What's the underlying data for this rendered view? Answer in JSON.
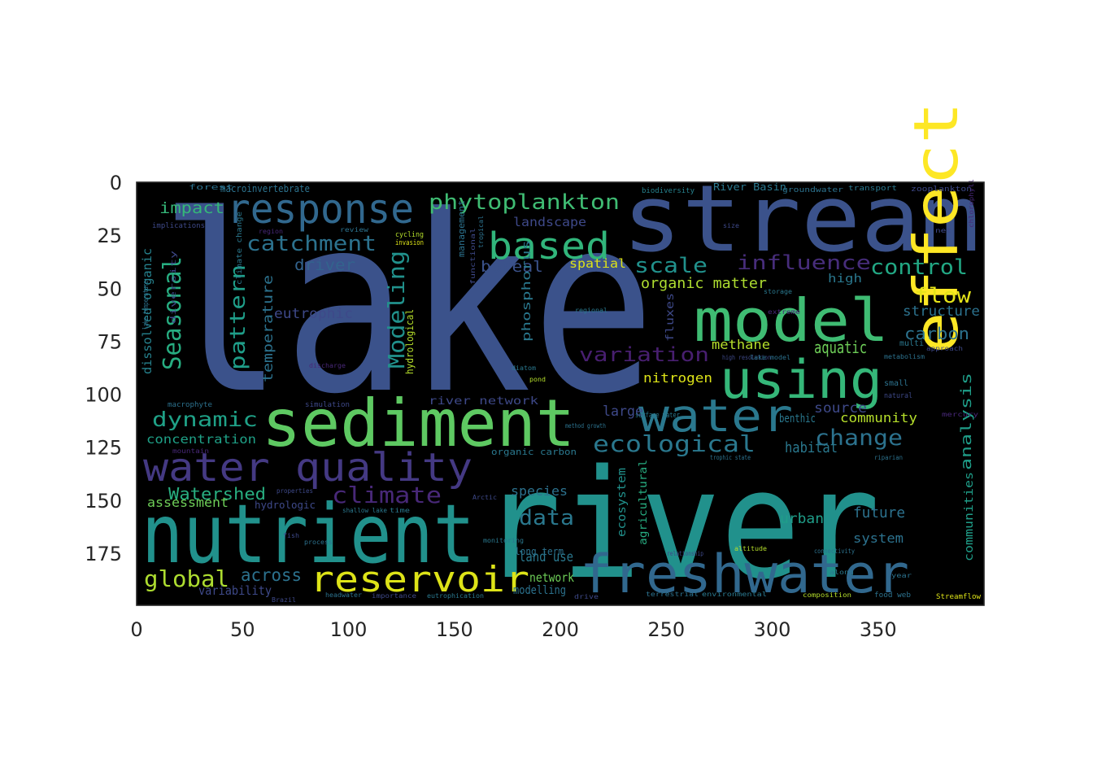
{
  "image_axes": {
    "x_ticks": [
      "0",
      "50",
      "100",
      "150",
      "200",
      "250",
      "300",
      "350"
    ],
    "y_ticks": [
      "0",
      "25",
      "50",
      "75",
      "100",
      "125",
      "150",
      "175"
    ],
    "background_color": "#000000",
    "palette": "viridis"
  },
  "wordcloud": {
    "words": [
      {
        "text": "lake",
        "color": "#3b528b"
      },
      {
        "text": "river",
        "color": "#21918c"
      },
      {
        "text": "stream",
        "color": "#3b528b"
      },
      {
        "text": "nutrient",
        "color": "#21918c"
      },
      {
        "text": "sediment",
        "color": "#5ec962"
      },
      {
        "text": "model",
        "color": "#3fbc73"
      },
      {
        "text": "effect",
        "color": "#fde725"
      },
      {
        "text": "freshwater",
        "color": "#31688e"
      },
      {
        "text": "water quality",
        "color": "#443983"
      },
      {
        "text": "using",
        "color": "#35b779"
      },
      {
        "text": "response",
        "color": "#31688e"
      },
      {
        "text": "water",
        "color": "#2a788e"
      },
      {
        "text": "reservoir",
        "color": "#dde318"
      },
      {
        "text": "based",
        "color": "#31b57b"
      },
      {
        "text": "ecological",
        "color": "#2a788e"
      },
      {
        "text": "phytoplankton",
        "color": "#3fbc73"
      },
      {
        "text": "Seasonal",
        "color": "#27ad81"
      },
      {
        "text": "Modeling",
        "color": "#21918c"
      },
      {
        "text": "pattern",
        "color": "#1f9e89"
      },
      {
        "text": "catchment",
        "color": "#2c728e"
      },
      {
        "text": "dynamic",
        "color": "#1fa187"
      },
      {
        "text": "global",
        "color": "#addc30"
      },
      {
        "text": "climate",
        "color": "#482878"
      },
      {
        "text": "change",
        "color": "#2c728e"
      },
      {
        "text": "influence",
        "color": "#472d7b"
      },
      {
        "text": "scale",
        "color": "#21918c"
      },
      {
        "text": "control",
        "color": "#22a884"
      },
      {
        "text": "flow",
        "color": "#e5e419"
      },
      {
        "text": "variation",
        "color": "#481f70"
      },
      {
        "text": "data",
        "color": "#2a788e"
      },
      {
        "text": "Watershed",
        "color": "#28ae80"
      },
      {
        "text": "across",
        "color": "#2c728e"
      },
      {
        "text": "impact",
        "color": "#35b779"
      },
      {
        "text": "driver",
        "color": "#33638d"
      },
      {
        "text": "boreal",
        "color": "#3b528b"
      },
      {
        "text": "temperature",
        "color": "#2c728e"
      },
      {
        "text": "organic matter",
        "color": "#addc30"
      },
      {
        "text": "eutrophic",
        "color": "#3e4989"
      },
      {
        "text": "carbon",
        "color": "#2c728e"
      },
      {
        "text": "aquatic",
        "color": "#6ece58"
      },
      {
        "text": "structure",
        "color": "#2c728e"
      },
      {
        "text": "methane",
        "color": "#b5de2b"
      },
      {
        "text": "nitrogen",
        "color": "#dde318"
      },
      {
        "text": "analysis",
        "color": "#1f9e89"
      },
      {
        "text": "source",
        "color": "#3e4989"
      },
      {
        "text": "community",
        "color": "#b5de2b"
      },
      {
        "text": "benthic",
        "color": "#2a788e"
      },
      {
        "text": "habitat",
        "color": "#2a788e"
      },
      {
        "text": "concentration",
        "color": "#1fa187"
      },
      {
        "text": "assessment",
        "color": "#6ece58"
      },
      {
        "text": "variability",
        "color": "#3e4989"
      },
      {
        "text": "land use",
        "color": "#2a788e"
      },
      {
        "text": "species",
        "color": "#2c728e"
      },
      {
        "text": "urban",
        "color": "#1f9e89"
      },
      {
        "text": "future",
        "color": "#2c728e"
      },
      {
        "text": "system",
        "color": "#2c728e"
      },
      {
        "text": "communities",
        "color": "#1f9e89"
      },
      {
        "text": "large",
        "color": "#3e4989"
      },
      {
        "text": "ecosystem",
        "color": "#21918c"
      },
      {
        "text": "agricultural",
        "color": "#27ad81"
      },
      {
        "text": "network",
        "color": "#6ece58"
      },
      {
        "text": "modelling",
        "color": "#2c728e"
      },
      {
        "text": "spatial",
        "color": "#dde318"
      },
      {
        "text": "landscape",
        "color": "#3e4989"
      },
      {
        "text": "phosphorus",
        "color": "#2a788e"
      },
      {
        "text": "hydrological",
        "color": "#b5de2b"
      },
      {
        "text": "management",
        "color": "#2c728e"
      },
      {
        "text": "fluxes",
        "color": "#3e4989"
      },
      {
        "text": "dissolved organic",
        "color": "#26828e"
      },
      {
        "text": "macroinvertebrate",
        "color": "#2c728e"
      },
      {
        "text": "river network",
        "color": "#3e4989"
      },
      {
        "text": "high",
        "color": "#2a788e"
      },
      {
        "text": "organic carbon",
        "color": "#2a788e"
      },
      {
        "text": "long term",
        "color": "#2c728e"
      },
      {
        "text": "hydrologic",
        "color": "#3e4989"
      },
      {
        "text": "River Basin",
        "color": "#2a788e"
      },
      {
        "text": "biodiversity",
        "color": "#26828e"
      },
      {
        "text": "groundwater",
        "color": "#2c728e"
      },
      {
        "text": "transport",
        "color": "#2a788e"
      },
      {
        "text": "zooplankton",
        "color": "#3e4989"
      },
      {
        "text": "forest",
        "color": "#2c728e"
      },
      {
        "text": "implications",
        "color": "#3e4989"
      },
      {
        "text": "cycling",
        "color": "#b5de2b"
      },
      {
        "text": "invasion",
        "color": "#dde318"
      },
      {
        "text": "diversity",
        "color": "#3e4989"
      },
      {
        "text": "climate change",
        "color": "#2a788e"
      },
      {
        "text": "lake temperature",
        "color": "#2c728e"
      },
      {
        "text": "macrophyte",
        "color": "#2c728e"
      },
      {
        "text": "simulation",
        "color": "#3e4989"
      },
      {
        "text": "surface water",
        "color": "#2a788e"
      },
      {
        "text": "small",
        "color": "#2c728e"
      },
      {
        "text": "natural",
        "color": "#3e4989"
      },
      {
        "text": "multi",
        "color": "#2a788e"
      },
      {
        "text": "approach",
        "color": "#3e4989"
      },
      {
        "text": "metabolism",
        "color": "#2c728e"
      },
      {
        "text": "high resolution",
        "color": "#3e4989"
      },
      {
        "text": "pond",
        "color": "#b5de2b"
      },
      {
        "text": "diatom",
        "color": "#2a788e"
      },
      {
        "text": "method growth",
        "color": "#2c728e"
      },
      {
        "text": "mountain",
        "color": "#482878"
      },
      {
        "text": "riparian",
        "color": "#2c728e"
      },
      {
        "text": "Arctic",
        "color": "#3e4989"
      },
      {
        "text": "time",
        "color": "#2a788e"
      },
      {
        "text": "trophic state",
        "color": "#2c728e"
      },
      {
        "text": "properties",
        "color": "#3e4989"
      },
      {
        "text": "shallow lake",
        "color": "#2a788e"
      },
      {
        "text": "fish",
        "color": "#3e4989"
      },
      {
        "text": "process",
        "color": "#2c728e"
      },
      {
        "text": "monitoring",
        "color": "#2a788e"
      },
      {
        "text": "relationship",
        "color": "#3e4989"
      },
      {
        "text": "connectivity",
        "color": "#2c728e"
      },
      {
        "text": "altitude",
        "color": "#b5de2b"
      },
      {
        "text": "along",
        "color": "#2a788e"
      },
      {
        "text": "size",
        "color": "#3e4989"
      },
      {
        "text": "year",
        "color": "#2c728e"
      },
      {
        "text": "Brazil",
        "color": "#3e4989"
      },
      {
        "text": "headwater",
        "color": "#2c728e"
      },
      {
        "text": "importance",
        "color": "#3e4989"
      },
      {
        "text": "eutrophication",
        "color": "#2a788e"
      },
      {
        "text": "drive",
        "color": "#3e4989"
      },
      {
        "text": "terrestrial",
        "color": "#2c728e"
      },
      {
        "text": "environmental",
        "color": "#2a788e"
      },
      {
        "text": "composition",
        "color": "#b5de2b"
      },
      {
        "text": "food web",
        "color": "#2c728e"
      },
      {
        "text": "Streamflow",
        "color": "#dde318"
      },
      {
        "text": "discharge",
        "color": "#482878"
      },
      {
        "text": "regional",
        "color": "#2a788e"
      },
      {
        "text": "mercury",
        "color": "#482878"
      },
      {
        "text": "functional",
        "color": "#3e4989"
      },
      {
        "text": "region",
        "color": "#482878"
      },
      {
        "text": "review",
        "color": "#2c728e"
      },
      {
        "text": "tropical",
        "color": "#2c728e"
      },
      {
        "text": "chlorophyll",
        "color": "#482878"
      },
      {
        "text": "net",
        "color": "#3e4989"
      },
      {
        "text": "storage",
        "color": "#2a788e"
      },
      {
        "text": "extreme",
        "color": "#482878"
      },
      {
        "text": "lake model",
        "color": "#2c728e"
      }
    ]
  }
}
